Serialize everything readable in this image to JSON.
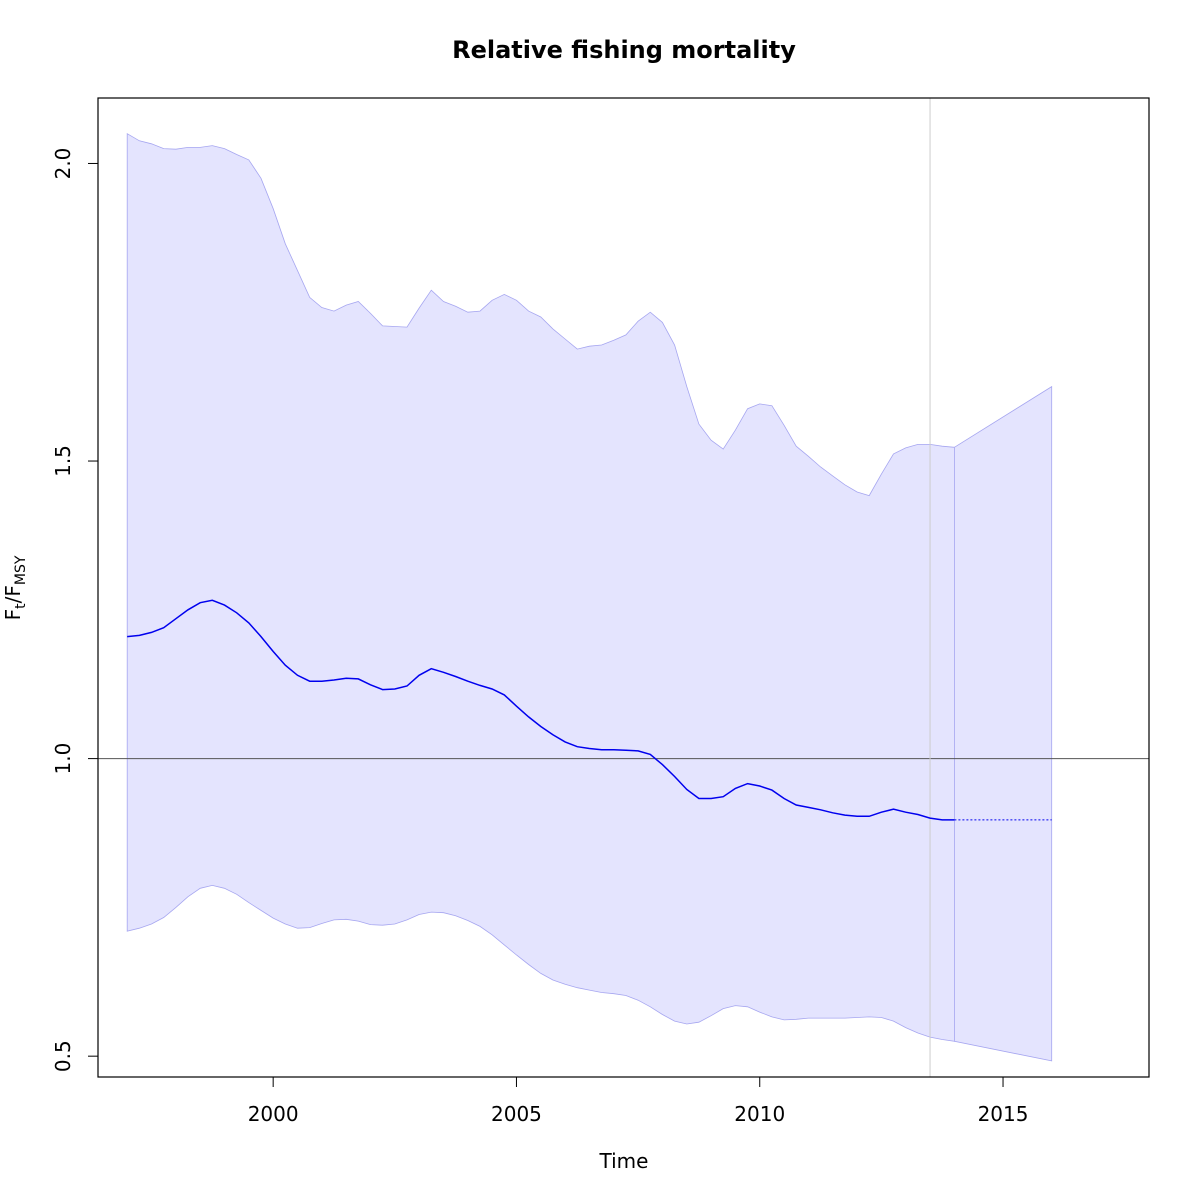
{
  "chart_data": {
    "type": "area",
    "title": "Relative fishing mortality",
    "xlabel": "Time",
    "ylabel": {
      "main": "F",
      "sub1": "t",
      "slash": "/",
      "main2": "F",
      "sub2": "MSY"
    },
    "xlim": [
      1996.4,
      2018.0
    ],
    "ylim": [
      0.465,
      2.11
    ],
    "xticks": [
      2000,
      2005,
      2010,
      2015
    ],
    "yticks": [
      0.5,
      1.0,
      1.5,
      2.0
    ],
    "xtick_labels": [
      "2000",
      "2005",
      "2010",
      "2015"
    ],
    "ytick_labels": [
      "0.5",
      "1.0",
      "1.5",
      "2.0"
    ],
    "reference_line_y": 1.0,
    "data_end_x": 2013.5,
    "colors": {
      "band_fill": "#e4e4fe",
      "band_edge": "#a6a6f0",
      "line": "#0000ee",
      "reference": "#555555",
      "vline": "#cccccc"
    },
    "series": [
      {
        "x": [
          1997.0,
          1997.25,
          1997.5,
          1997.75,
          1998.0,
          1998.25,
          1998.5,
          1998.75,
          1999.0,
          1999.25,
          1999.5,
          1999.75,
          2000.0,
          2000.25,
          2000.5,
          2000.75,
          2001.0,
          2001.25,
          2001.5,
          2001.75,
          2002.0,
          2002.25,
          2002.5,
          2002.75,
          2003.0,
          2003.25,
          2003.5,
          2003.75,
          2004.0,
          2004.25,
          2004.5,
          2004.75,
          2005.0,
          2005.25,
          2005.5,
          2005.75,
          2006.0,
          2006.25,
          2006.5,
          2006.75,
          2007.0,
          2007.25,
          2007.5,
          2007.75,
          2008.0,
          2008.25,
          2008.5,
          2008.75,
          2009.0,
          2009.25,
          2009.5,
          2009.75,
          2010.0,
          2010.25,
          2010.5,
          2010.75,
          2011.0,
          2011.25,
          2011.5,
          2011.75,
          2012.0,
          2012.25,
          2012.5,
          2012.75,
          2013.0,
          2013.25,
          2013.5,
          2013.75,
          2014.0
        ],
        "values": [
          1.205,
          1.207,
          1.212,
          1.22,
          1.235,
          1.25,
          1.262,
          1.266,
          1.258,
          1.245,
          1.228,
          1.205,
          1.18,
          1.157,
          1.14,
          1.13,
          1.13,
          1.132,
          1.135,
          1.134,
          1.124,
          1.116,
          1.117,
          1.122,
          1.14,
          1.151,
          1.145,
          1.138,
          1.13,
          1.123,
          1.117,
          1.107,
          1.088,
          1.07,
          1.054,
          1.04,
          1.028,
          1.02,
          1.017,
          1.015,
          1.015,
          1.014,
          1.013,
          1.007,
          0.99,
          0.97,
          0.948,
          0.933,
          0.933,
          0.936,
          0.95,
          0.958,
          0.954,
          0.947,
          0.933,
          0.922,
          0.918,
          0.914,
          0.909,
          0.905,
          0.903,
          0.903,
          0.91,
          0.915,
          0.91,
          0.906,
          0.9,
          0.897,
          0.897
        ],
        "lower": [
          0.71,
          0.715,
          0.722,
          0.733,
          0.75,
          0.768,
          0.782,
          0.787,
          0.782,
          0.772,
          0.758,
          0.745,
          0.732,
          0.722,
          0.715,
          0.716,
          0.723,
          0.729,
          0.73,
          0.727,
          0.721,
          0.72,
          0.722,
          0.729,
          0.738,
          0.742,
          0.741,
          0.736,
          0.728,
          0.718,
          0.704,
          0.687,
          0.67,
          0.654,
          0.639,
          0.628,
          0.621,
          0.615,
          0.611,
          0.607,
          0.605,
          0.602,
          0.594,
          0.583,
          0.57,
          0.559,
          0.554,
          0.557,
          0.568,
          0.58,
          0.585,
          0.583,
          0.574,
          0.566,
          0.561,
          0.562,
          0.564,
          0.564,
          0.564,
          0.564,
          0.565,
          0.566,
          0.565,
          0.559,
          0.548,
          0.539,
          0.532,
          0.528,
          0.525
        ],
        "upper": [
          2.05,
          2.038,
          2.033,
          2.025,
          2.024,
          2.027,
          2.027,
          2.03,
          2.025,
          2.015,
          2.006,
          1.975,
          1.924,
          1.865,
          1.82,
          1.775,
          1.758,
          1.752,
          1.762,
          1.768,
          1.748,
          1.727,
          1.726,
          1.725,
          1.757,
          1.787,
          1.768,
          1.76,
          1.75,
          1.752,
          1.77,
          1.78,
          1.77,
          1.752,
          1.742,
          1.722,
          1.705,
          1.688,
          1.693,
          1.695,
          1.703,
          1.712,
          1.735,
          1.75,
          1.733,
          1.695,
          1.625,
          1.562,
          1.535,
          1.52,
          1.552,
          1.588,
          1.596,
          1.593,
          1.56,
          1.525,
          1.508,
          1.49,
          1.475,
          1.46,
          1.448,
          1.442,
          1.478,
          1.512,
          1.522,
          1.528,
          1.528,
          1.525,
          1.523
        ]
      },
      {
        "x": [
          2014.0,
          2016.0
        ],
        "values": [
          0.897,
          0.897
        ],
        "lower": [
          0.525,
          0.492
        ],
        "upper": [
          1.523,
          1.625
        ]
      }
    ]
  }
}
